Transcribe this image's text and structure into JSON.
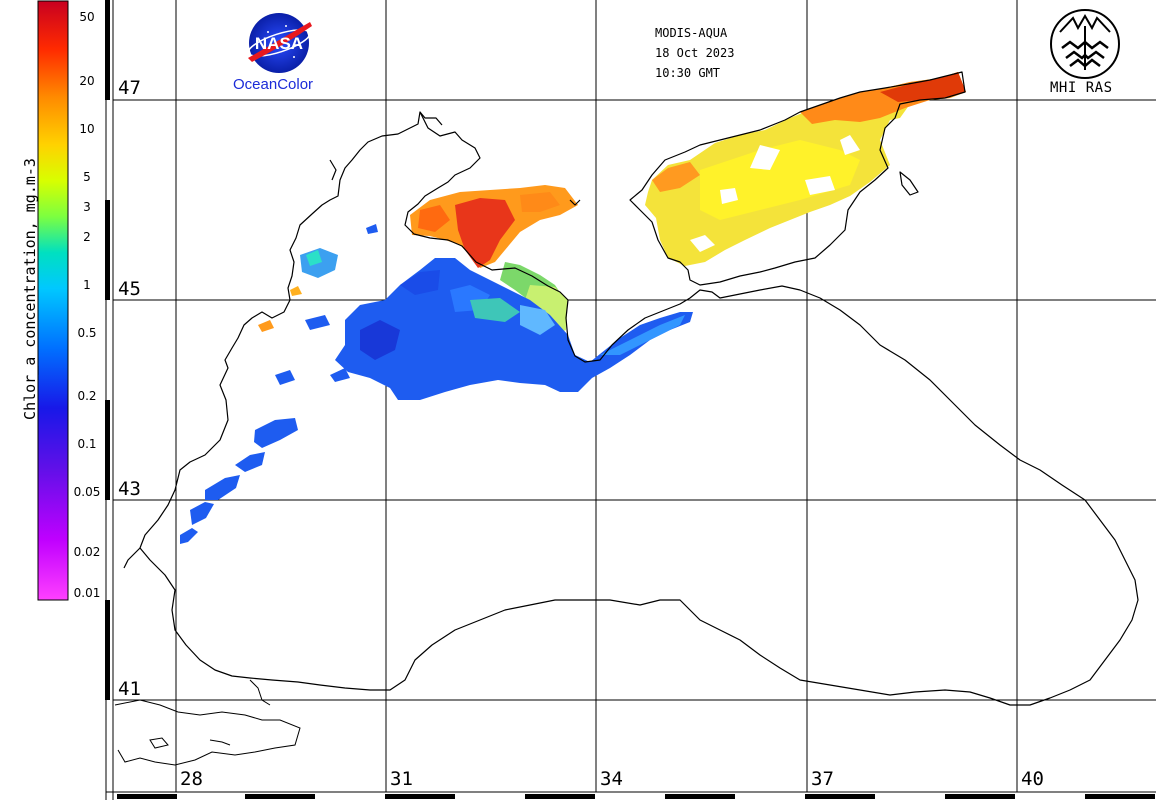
{
  "header": {
    "sensor": "MODIS-AQUA",
    "date": "18 Oct 2023",
    "time": "10:30 GMT"
  },
  "logos": {
    "nasa": {
      "name": "nasa-meatball-icon",
      "text": "NASA",
      "caption": "OceanColor"
    },
    "mhi": {
      "name": "mhi-ras-emblem-icon",
      "caption": "MHI RAS"
    }
  },
  "colorbar": {
    "title": "Chlor_a concentration, mg.m-3",
    "scale": "log",
    "ticks": [
      "50",
      "20",
      "10",
      "5",
      "3",
      "2",
      "1",
      "0.5",
      "0.2",
      "0.1",
      "0.05",
      "0.02",
      "0.01"
    ],
    "colors": [
      "#d4001a",
      "#ff2a00",
      "#ff8a00",
      "#ffd200",
      "#d8ff00",
      "#7cff40",
      "#00e0c0",
      "#00c8ff",
      "#0070ff",
      "#1818e8",
      "#6010e8",
      "#b800ff",
      "#ff40ff"
    ]
  },
  "grid": {
    "lat_labels": [
      "47",
      "45",
      "43",
      "41"
    ],
    "lon_labels": [
      "28",
      "31",
      "34",
      "37",
      "40"
    ]
  },
  "colors": {
    "low": "#1e5cf0",
    "medium": "#ffd24a",
    "high": "#ff7a10",
    "very_high": "#d41a00",
    "coast": "#000000"
  }
}
